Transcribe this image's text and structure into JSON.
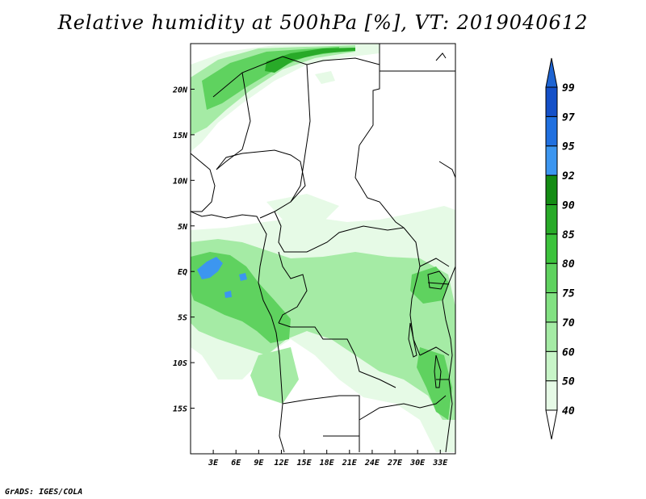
{
  "title": "Relative humidity at 500hPa [%], VT: 2019040612",
  "credit": "GrADS: IGES/COLA",
  "map": {
    "lon_range": [
      0,
      35
    ],
    "lat_range": [
      -20,
      25
    ],
    "lat_ticks": [
      {
        "value": 20,
        "label": "20N"
      },
      {
        "value": 15,
        "label": "15N"
      },
      {
        "value": 10,
        "label": "10N"
      },
      {
        "value": 5,
        "label": "5N"
      },
      {
        "value": 0,
        "label": "EQ"
      },
      {
        "value": -5,
        "label": "5S"
      },
      {
        "value": -10,
        "label": "10S"
      },
      {
        "value": -15,
        "label": "15S"
      }
    ],
    "lon_ticks": [
      {
        "value": 3,
        "label": "3E"
      },
      {
        "value": 6,
        "label": "6E"
      },
      {
        "value": 9,
        "label": "9E"
      },
      {
        "value": 12,
        "label": "12E"
      },
      {
        "value": 15,
        "label": "15E"
      },
      {
        "value": 18,
        "label": "18E"
      },
      {
        "value": 21,
        "label": "21E"
      },
      {
        "value": 24,
        "label": "24E"
      },
      {
        "value": 27,
        "label": "27E"
      },
      {
        "value": 30,
        "label": "30E"
      },
      {
        "value": 33,
        "label": "33E"
      }
    ]
  },
  "colorbar": {
    "levels": [
      "40",
      "50",
      "60",
      "70",
      "75",
      "80",
      "85",
      "90",
      "92",
      "95",
      "97",
      "99"
    ],
    "colors": [
      "#ffffff",
      "#e6fae6",
      "#c8f5c8",
      "#a5eba5",
      "#82e182",
      "#5fd25f",
      "#3cc33c",
      "#28aa28",
      "#148c14",
      "#3c96f0",
      "#2070e0",
      "#1450c8",
      "#1e64d2"
    ]
  },
  "colors": {
    "coast": "#000000",
    "moist_light": "#e6fae6",
    "moist_mid": "#a5eba5",
    "moist_high": "#5fd25f",
    "moist_very_high": "#28aa28",
    "saturated": "#3c96f0"
  }
}
